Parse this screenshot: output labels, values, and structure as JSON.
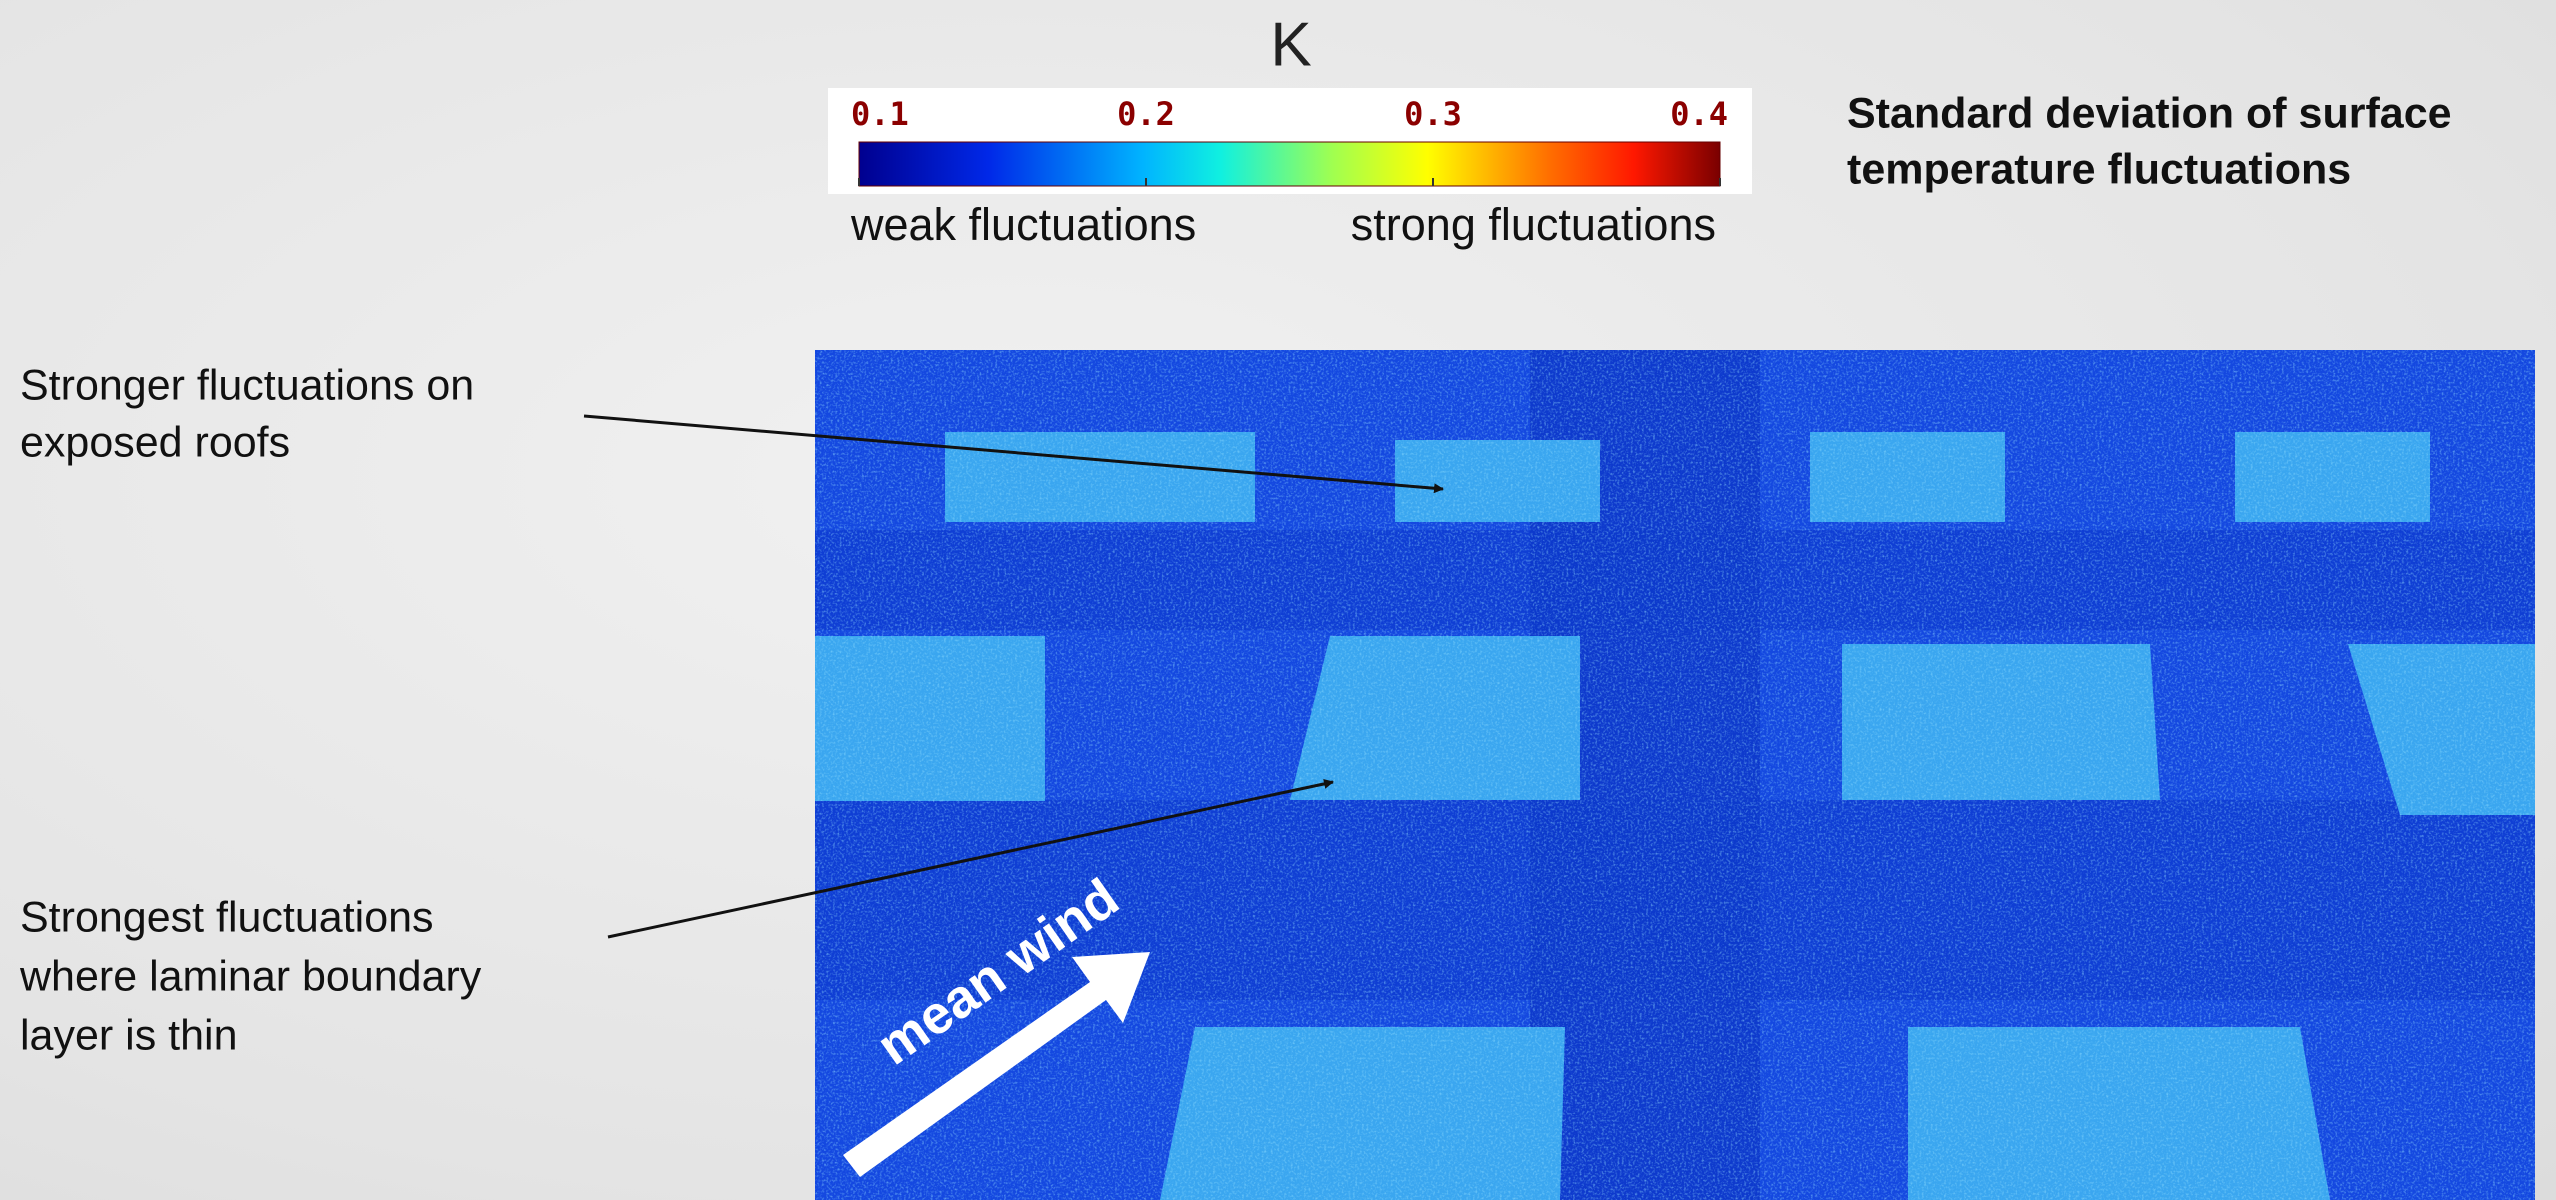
{
  "colorbar": {
    "unit": "K",
    "ticks": [
      0.1,
      0.2,
      0.3,
      0.4
    ],
    "low_label": "weak fluctuations",
    "high_label": "strong fluctuations"
  },
  "title": [
    "Standard deviation of surface",
    "temperature fluctuations"
  ],
  "annotations": [
    {
      "lines": [
        "Stronger fluctuations on",
        "exposed roofs"
      ]
    },
    {
      "lines": [
        "Strongest fluctuations",
        "where laminar boundary",
        "layer is thin"
      ]
    }
  ],
  "image": {
    "label": "mean wind"
  }
}
